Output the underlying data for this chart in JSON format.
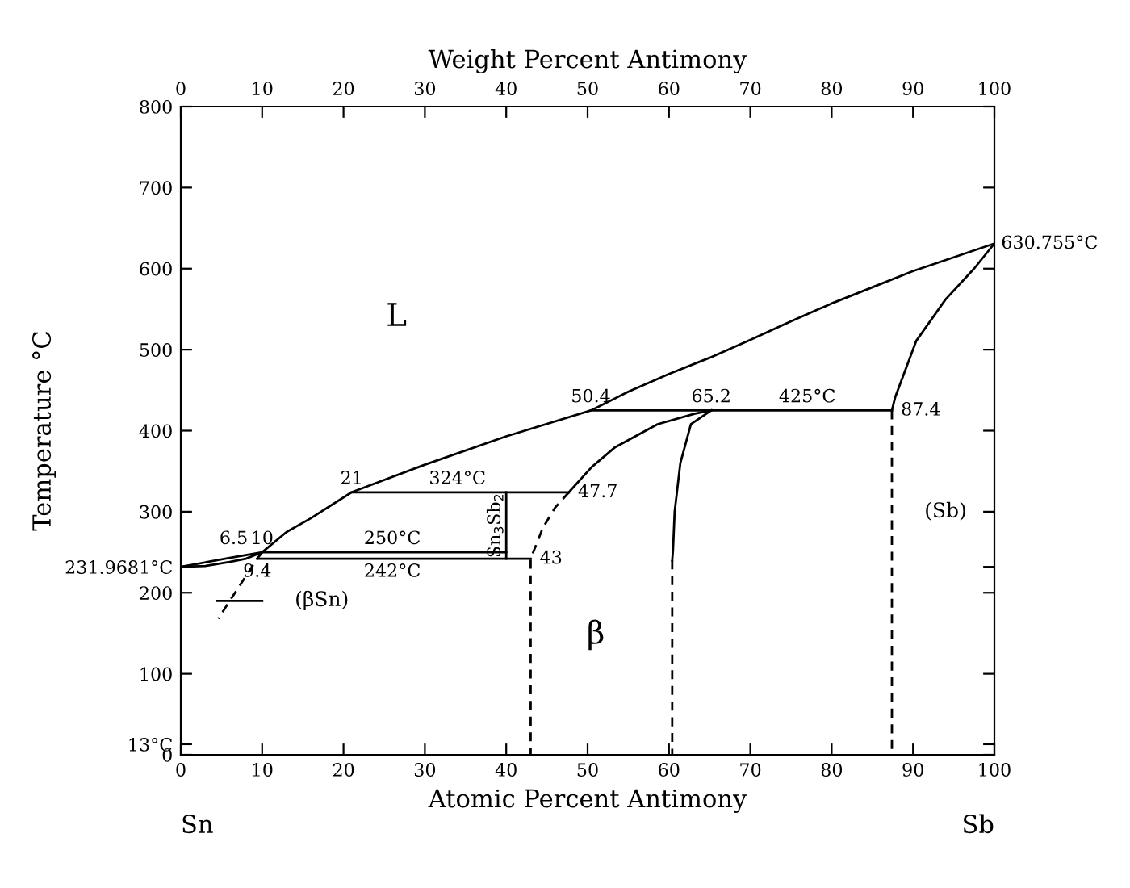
{
  "chart_data": {
    "type": "line",
    "xlabel": "Atomic Percent Antimony",
    "x2label": "Weight Percent Antimony",
    "ylabel": "Temperature °C",
    "xlim": [
      0,
      100
    ],
    "xticks": [
      0,
      10,
      20,
      30,
      40,
      50,
      60,
      70,
      80,
      90,
      100
    ],
    "x2lim": [
      0,
      100
    ],
    "x2ticks": [
      0,
      10,
      20,
      30,
      40,
      50,
      60,
      70,
      80,
      90,
      100
    ],
    "ylim": [
      0,
      800
    ],
    "yticks": [
      0,
      {
        "value": 13,
        "label": "13°C"
      },
      100,
      200,
      {
        "value": 231.9681,
        "label": "231.9681°C"
      },
      300,
      400,
      500,
      600,
      700,
      800
    ],
    "grid": false,
    "marker": "none",
    "series": [
      {
        "color": "#000000",
        "line_style": "solid",
        "x": [
          0,
          6,
          10,
          13,
          16,
          21,
          30,
          40,
          50.4,
          55,
          60,
          65,
          70,
          75,
          80,
          85,
          90,
          95,
          100
        ],
        "values": [
          232,
          243,
          250,
          275,
          292,
          324,
          358,
          393,
          425,
          448,
          470,
          490,
          512,
          535,
          557,
          577,
          597,
          614,
          631
        ]
      },
      {
        "color": "#000000",
        "line_style": "solid",
        "x": [
          0,
          3,
          6,
          8,
          10,
          40
        ],
        "values": [
          232,
          233,
          238,
          242,
          250,
          250
        ]
      },
      {
        "color": "#000000",
        "line_style": "dashed",
        "x": [
          10,
          9.4,
          7,
          4.6
        ],
        "values": [
          250,
          242,
          205,
          168
        ]
      },
      {
        "color": "#000000",
        "line_style": "solid",
        "x": [
          21,
          47.7
        ],
        "values": [
          324,
          324
        ]
      },
      {
        "color": "#000000",
        "line_style": "solid",
        "x": [
          9.4,
          43
        ],
        "values": [
          242,
          242
        ]
      },
      {
        "color": "#000000",
        "line_style": "solid",
        "x": [
          40,
          40
        ],
        "values": [
          242,
          324
        ]
      },
      {
        "color": "#000000",
        "line_style": "solid",
        "x": [
          50.4,
          87.4
        ],
        "values": [
          425,
          425
        ]
      },
      {
        "color": "#000000",
        "line_style": "dashed",
        "x": [
          47.7,
          46,
          44.5,
          43,
          43
        ],
        "values": [
          324,
          305,
          280,
          242,
          0
        ]
      },
      {
        "color": "#000000",
        "line_style": "solid",
        "x": [
          47.7,
          50.5,
          53.3,
          58.6,
          63.2,
          65.2
        ],
        "values": [
          324,
          355,
          379,
          408,
          421,
          425
        ]
      },
      {
        "color": "#000000",
        "line_style": "solid",
        "x": [
          65.2,
          62.7,
          61.4,
          60.7,
          60.5,
          60.4
        ],
        "values": [
          425,
          408,
          360,
          300,
          253,
          240
        ]
      },
      {
        "color": "#000000",
        "line_style": "dashed",
        "x": [
          60.4,
          60.4
        ],
        "values": [
          240,
          0
        ]
      },
      {
        "color": "#000000",
        "line_style": "solid",
        "x": [
          87.4,
          87.8,
          90.4,
          94,
          97.5,
          100
        ],
        "values": [
          425,
          441,
          511,
          562,
          600,
          631
        ]
      },
      {
        "color": "#000000",
        "line_style": "dashed",
        "x": [
          87.4,
          87.4
        ],
        "values": [
          425,
          0
        ]
      },
      {
        "color": "#000000",
        "line_style": "solid",
        "x": [
          10,
          4.5
        ],
        "values": [
          190,
          190
        ]
      }
    ],
    "annotations": [
      "Sn",
      "Sb",
      "L",
      "β",
      "(Sb)",
      "(βSn)",
      {
        "text": "630.755°C",
        "x": 100,
        "y": 630.755
      },
      {
        "text": "50.4",
        "x": 50.4,
        "y": 425
      },
      {
        "text": "65.2",
        "x": 65.2,
        "y": 425
      },
      {
        "text": "425°C",
        "x": 77,
        "y": 425
      },
      {
        "text": "87.4",
        "x": 87.4,
        "y": 425
      },
      {
        "text": "21",
        "x": 21,
        "y": 324
      },
      {
        "text": "324°C",
        "x": 34,
        "y": 324
      },
      {
        "text": "47.7",
        "x": 47.7,
        "y": 324
      },
      {
        "text": "6.5",
        "x": 6.5,
        "y": 250
      },
      {
        "text": "10",
        "x": 10,
        "y": 250
      },
      {
        "text": "250°C",
        "x": 26,
        "y": 250
      },
      {
        "text": "9.4",
        "x": 9.4,
        "y": 242
      },
      {
        "text": "242°C",
        "x": 26,
        "y": 242
      },
      {
        "text": "43",
        "x": 43,
        "y": 242
      },
      {
        "text": "Sn$_{3}$Sb$_{2}$",
        "x": 40,
        "y": 283
      }
    ]
  }
}
